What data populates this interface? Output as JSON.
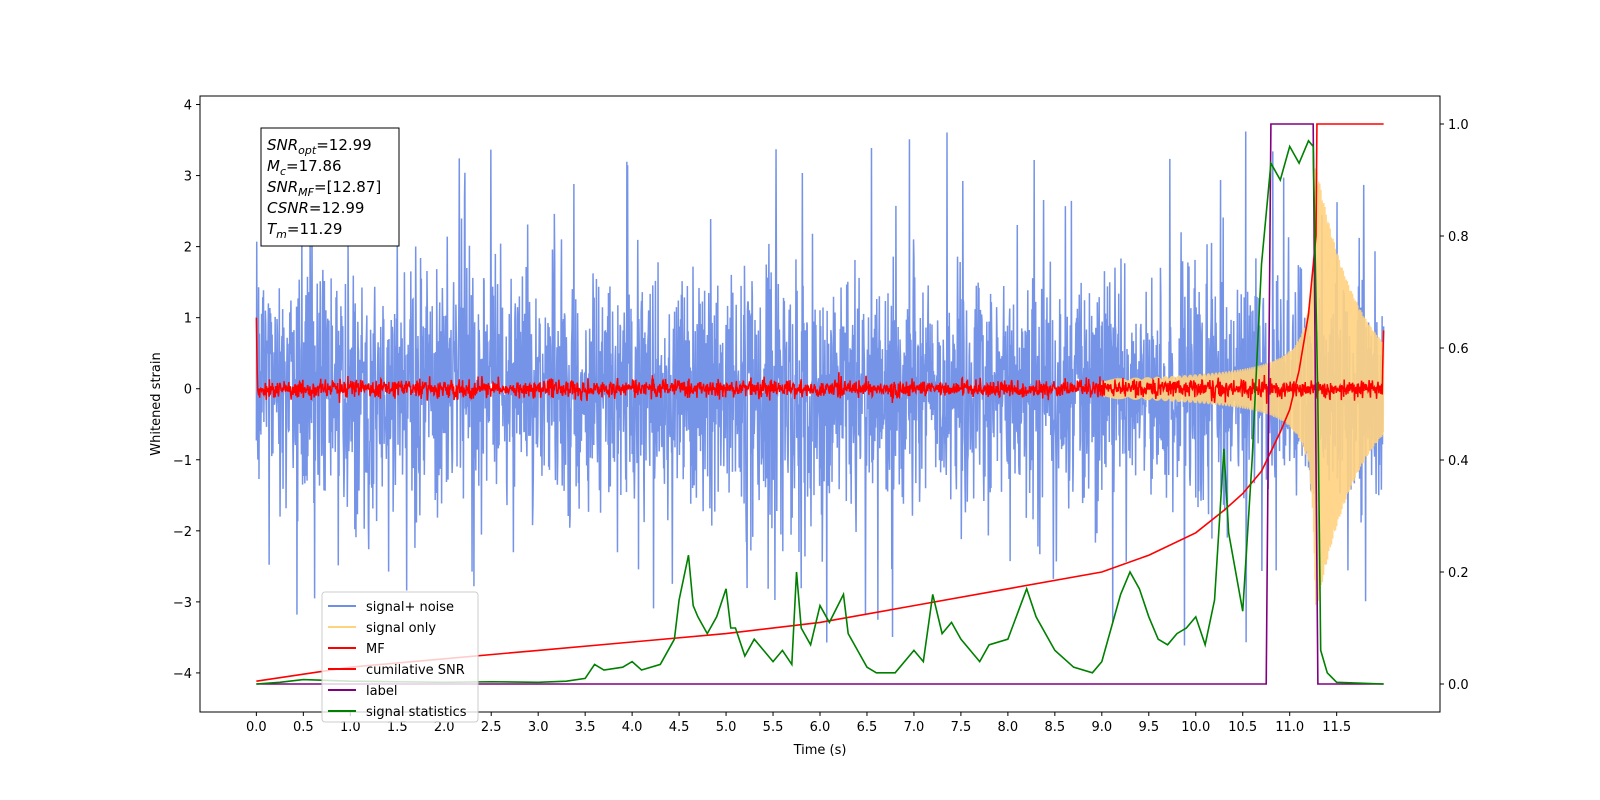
{
  "chart_data": {
    "type": "line",
    "title": "",
    "xlabel": "Time (s)",
    "ylabel": "Whitened strain",
    "xlim": [
      -0.6,
      12.6
    ],
    "ylim": [
      -4.55,
      4.12
    ],
    "y2lim": [
      -0.05,
      1.05
    ],
    "x_ticks": [
      "0.0",
      "0.5",
      "1.0",
      "1.5",
      "2.0",
      "2.5",
      "3.0",
      "3.5",
      "4.0",
      "4.5",
      "5.0",
      "5.5",
      "6.0",
      "6.5",
      "7.0",
      "7.5",
      "8.0",
      "8.5",
      "9.0",
      "9.5",
      "10.0",
      "10.5",
      "11.0",
      "11.5"
    ],
    "y_ticks": [
      "4",
      "3",
      "2",
      "1",
      "0",
      "−1",
      "−2",
      "−3",
      "−4"
    ],
    "y2_ticks": [
      "1.0",
      "0.8",
      "0.6",
      "0.4",
      "0.2",
      "0.0"
    ],
    "grid": false,
    "legend_position": "lower-left",
    "series": [
      {
        "name": "signal+ noise",
        "axis": "left",
        "color": "#6f8ee6",
        "description": "white noise of std ~0.85 over 0-12 s with occasional excursions to about +/-3.6"
      },
      {
        "name": "signal only",
        "axis": "left",
        "color": "#ffd27f",
        "description": "chirp whose amplitude grows from ~0 to ~3.1 approaching t = 11.29 s"
      },
      {
        "name": "MF",
        "axis": "left",
        "color": "#ff0000",
        "description": "matched-filter output near 0 with ~0.1 fluctuations, spikes to ~1.0 at t = 0 and ~0.8 at t = 12"
      },
      {
        "name": "cumilative SNR",
        "axis": "right",
        "color": "#ff0000",
        "x": [
          0.0,
          1.0,
          2.0,
          3.0,
          4.0,
          5.0,
          6.0,
          7.0,
          8.0,
          9.0,
          9.5,
          10.0,
          10.3,
          10.5,
          10.7,
          10.9,
          11.0,
          11.1,
          11.2,
          11.28,
          11.29,
          12.0
        ],
        "y": [
          0.005,
          0.03,
          0.045,
          0.06,
          0.075,
          0.09,
          0.11,
          0.14,
          0.17,
          0.2,
          0.23,
          0.27,
          0.31,
          0.34,
          0.38,
          0.45,
          0.49,
          0.56,
          0.66,
          0.8,
          1.0,
          1.0
        ]
      },
      {
        "name": "label",
        "axis": "right",
        "color": "#800080",
        "x": [
          0.0,
          10.75,
          10.8,
          11.25,
          11.3,
          12.0
        ],
        "y": [
          0.0,
          0.0,
          1.0,
          1.0,
          0.0,
          0.0
        ]
      },
      {
        "name": "signal statistics",
        "axis": "right",
        "color": "#008000",
        "x": [
          0.0,
          0.25,
          0.5,
          1.0,
          1.5,
          2.0,
          2.5,
          3.0,
          3.3,
          3.5,
          3.6,
          3.7,
          3.9,
          4.0,
          4.1,
          4.3,
          4.45,
          4.5,
          4.6,
          4.65,
          4.7,
          4.8,
          4.9,
          5.0,
          5.05,
          5.1,
          5.2,
          5.3,
          5.4,
          5.5,
          5.6,
          5.7,
          5.75,
          5.8,
          5.9,
          6.0,
          6.1,
          6.25,
          6.3,
          6.4,
          6.5,
          6.6,
          6.8,
          7.0,
          7.1,
          7.2,
          7.3,
          7.4,
          7.5,
          7.6,
          7.7,
          7.8,
          8.0,
          8.2,
          8.3,
          8.5,
          8.7,
          8.9,
          9.0,
          9.1,
          9.2,
          9.3,
          9.4,
          9.5,
          9.6,
          9.7,
          9.8,
          9.9,
          10.0,
          10.1,
          10.2,
          10.3,
          10.35,
          10.5,
          10.6,
          10.7,
          10.8,
          10.9,
          11.0,
          11.1,
          11.2,
          11.25,
          11.3,
          11.33,
          11.4,
          11.5,
          12.0
        ],
        "y": [
          0.0,
          0.003,
          0.008,
          0.005,
          0.004,
          0.003,
          0.004,
          0.003,
          0.005,
          0.01,
          0.035,
          0.025,
          0.03,
          0.04,
          0.025,
          0.035,
          0.08,
          0.15,
          0.23,
          0.14,
          0.12,
          0.09,
          0.12,
          0.17,
          0.1,
          0.1,
          0.05,
          0.08,
          0.06,
          0.04,
          0.06,
          0.035,
          0.2,
          0.1,
          0.07,
          0.14,
          0.11,
          0.16,
          0.09,
          0.06,
          0.03,
          0.02,
          0.02,
          0.06,
          0.04,
          0.16,
          0.09,
          0.11,
          0.08,
          0.06,
          0.04,
          0.07,
          0.08,
          0.17,
          0.12,
          0.06,
          0.03,
          0.02,
          0.04,
          0.1,
          0.16,
          0.2,
          0.17,
          0.12,
          0.08,
          0.07,
          0.09,
          0.1,
          0.12,
          0.07,
          0.15,
          0.42,
          0.27,
          0.13,
          0.4,
          0.75,
          0.93,
          0.9,
          0.96,
          0.93,
          0.97,
          0.96,
          0.5,
          0.06,
          0.02,
          0.003,
          0.0
        ]
      }
    ],
    "annotation": [
      {
        "main": "SNR",
        "sub": "opt",
        "rest": "=12.99"
      },
      {
        "main": "M",
        "sub": "c",
        "rest": "=17.86"
      },
      {
        "main": "SNR",
        "sub": "MF",
        "rest": "=[12.87]"
      },
      {
        "main": "CSNR",
        "sub": "",
        "rest": "=12.99"
      },
      {
        "main": "T",
        "sub": "m",
        "rest": "=11.29"
      }
    ]
  }
}
